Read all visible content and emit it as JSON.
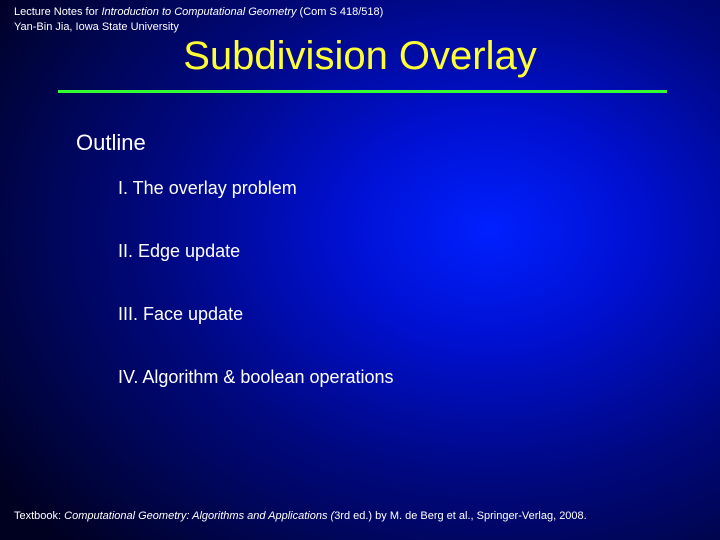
{
  "header": {
    "prefix": "Lecture Notes for ",
    "course_title": "Introduction to Computational Geometry",
    "course_code": " (Com S 418/518)",
    "author_line": "Yan-Bin Jia, Iowa State University"
  },
  "title": "Subdivision Overlay",
  "outline": {
    "heading": "Outline",
    "items": [
      "I. The overlay problem",
      "II. Edge update",
      "III. Face update",
      "IV. Algorithm & boolean operations"
    ]
  },
  "footer": {
    "prefix": "Textbook: ",
    "book_title": "Computational Geometry: Algorithms and Applications (",
    "suffix": "3rd ed.) by M. de Berg et al., Springer-Verlag, 2008."
  },
  "style": {
    "title_color": "#ffff33",
    "divider_color": "#33ff33",
    "text_color": "#ffffff",
    "title_fontsize": 40,
    "heading_fontsize": 22,
    "item_fontsize": 18,
    "header_fontsize": 11,
    "footer_fontsize": 11
  }
}
